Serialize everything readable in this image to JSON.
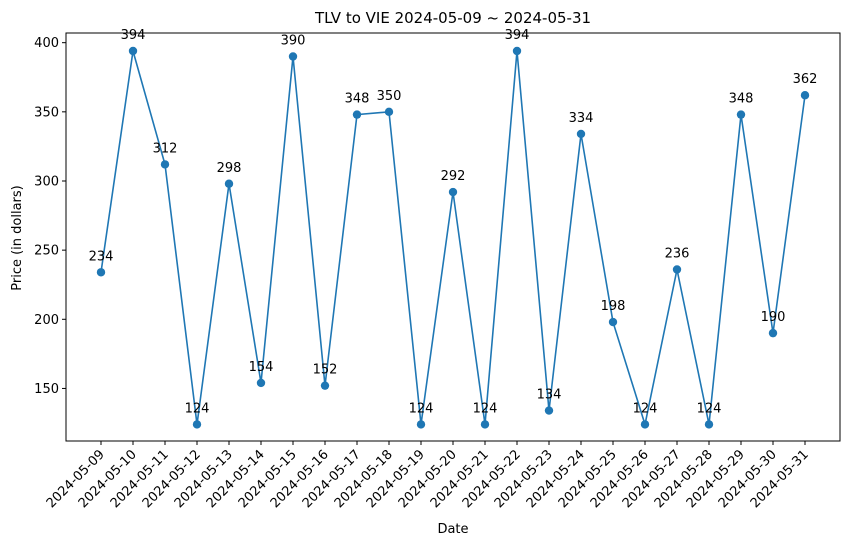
{
  "chart_data": {
    "type": "line",
    "title": "TLV to VIE  2024-05-09 ~ 2024-05-31",
    "xlabel": "Date",
    "ylabel": "Price (in dollars)",
    "categories": [
      "2024-05-09",
      "2024-05-10",
      "2024-05-11",
      "2024-05-12",
      "2024-05-13",
      "2024-05-14",
      "2024-05-15",
      "2024-05-16",
      "2024-05-17",
      "2024-05-18",
      "2024-05-19",
      "2024-05-20",
      "2024-05-21",
      "2024-05-22",
      "2024-05-23",
      "2024-05-24",
      "2024-05-25",
      "2024-05-26",
      "2024-05-27",
      "2024-05-28",
      "2024-05-29",
      "2024-05-30",
      "2024-05-31"
    ],
    "series": [
      {
        "values": [
          234,
          394,
          312,
          124,
          298,
          154,
          390,
          152,
          348,
          350,
          124,
          292,
          124,
          394,
          134,
          334,
          198,
          124,
          236,
          124,
          348,
          190,
          362
        ]
      }
    ],
    "ylim": [
      112,
      407
    ],
    "yticks": [
      150,
      200,
      250,
      300,
      350,
      400
    ],
    "grid": false,
    "legend": "none",
    "line_color": "#1f77b4",
    "marker": "circle"
  }
}
